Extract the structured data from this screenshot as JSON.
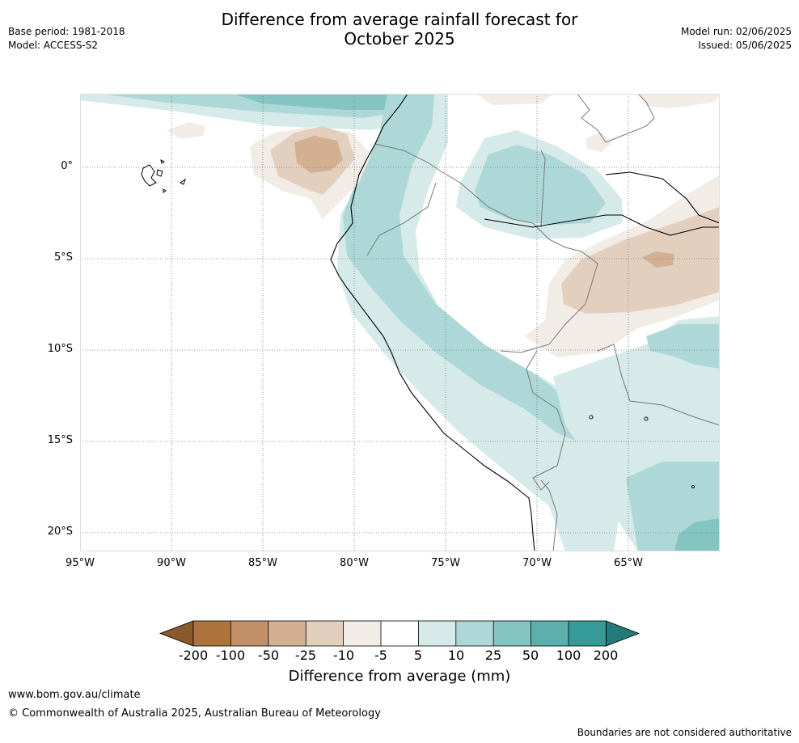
{
  "header": {
    "base_period": "Base period: 1981-2018",
    "model": "Model: ACCESS-S2",
    "title_line1": "Difference from average rainfall forecast for",
    "title_line2": "October 2025",
    "model_run": "Model run: 02/06/2025",
    "issued": "Issued: 05/06/2025"
  },
  "map": {
    "latitude_labels": [
      "0°",
      "5°S",
      "10°S",
      "15°S",
      "20°S"
    ],
    "longitude_labels": [
      "95°W",
      "90°W",
      "85°W",
      "80°W",
      "75°W",
      "70°W",
      "65°W"
    ],
    "colors": {
      "brown_200": "#8a5a2a",
      "brown_100": "#ad733d",
      "brown_50": "#c2916a",
      "brown_25": "#d4b093",
      "brown_10": "#e3cfbe",
      "brown_5": "#f2ece7",
      "neutral": "#ffffff",
      "teal_5": "#d6eaea",
      "teal_10": "#add8d7",
      "teal_25": "#84c4c2",
      "teal_50": "#5cafad",
      "teal_100": "#349b98",
      "teal_200": "#237a78"
    }
  },
  "colorbar": {
    "ticks": [
      "-200",
      "-100",
      "-50",
      "-25",
      "-10",
      "-5",
      "5",
      "10",
      "25",
      "50",
      "100",
      "200"
    ],
    "title": "Difference from average (mm)"
  },
  "footer": {
    "url": "www.bom.gov.au/climate",
    "copyright": "© Commonwealth of Australia 2025, Australian Bureau of Meteorology",
    "disclaimer": "Boundaries are not considered authoritative"
  }
}
